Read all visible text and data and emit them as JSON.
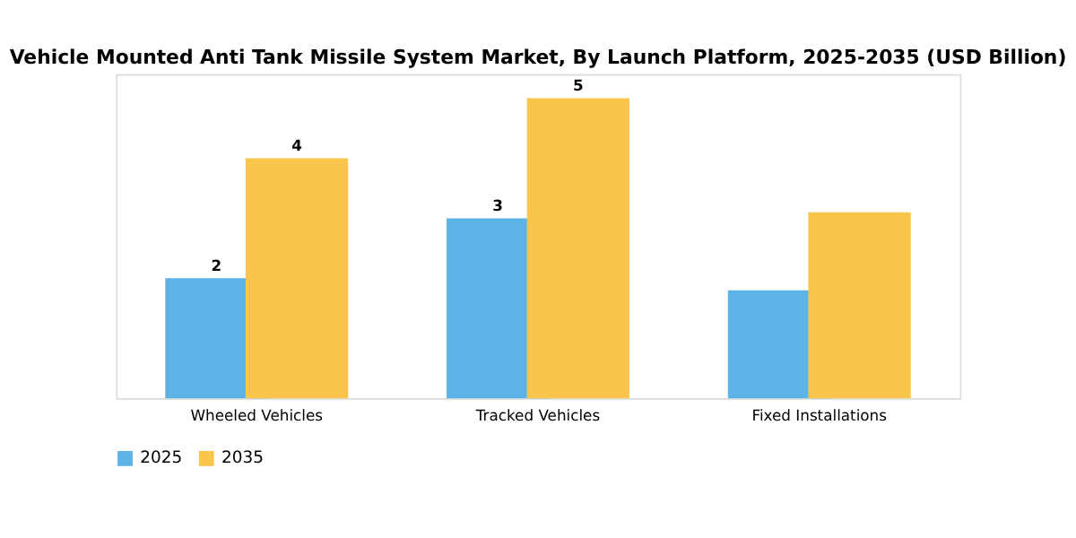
{
  "chart_data": {
    "type": "bar",
    "title": "Vehicle Mounted Anti Tank Missile System Market, By Launch Platform, 2025-2035 (USD Billion)",
    "categories": [
      "Wheeled Vehicles",
      "Tracked Vehicles",
      "Fixed Installations"
    ],
    "ylim": [
      0,
      5.4
    ],
    "series": [
      {
        "name": "2025",
        "color": "#5db3e6",
        "values": [
          2,
          3,
          1.8
        ],
        "value_labels": [
          "2",
          "3",
          null
        ]
      },
      {
        "name": "2035",
        "color": "#f9c54c",
        "values": [
          4,
          5,
          3.1
        ],
        "value_labels": [
          "4",
          "5",
          null
        ]
      }
    ],
    "legend": "bottom",
    "grid": false
  }
}
